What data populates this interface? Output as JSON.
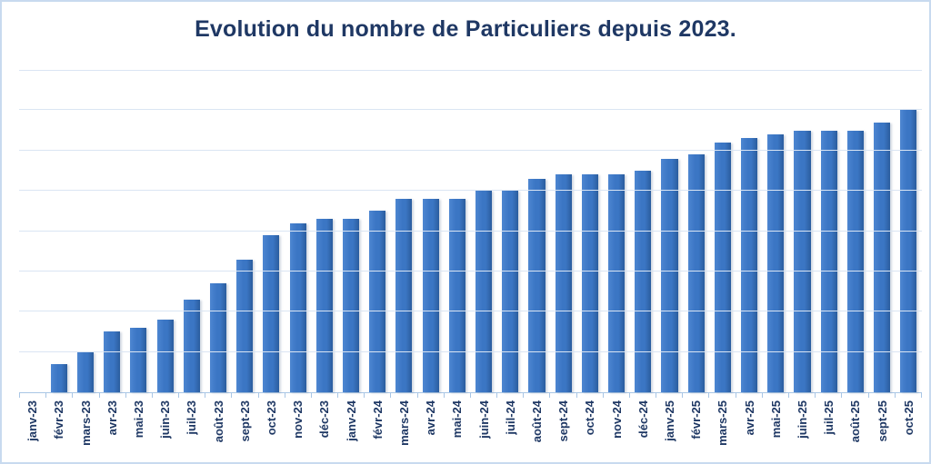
{
  "chart_data": {
    "type": "bar",
    "title": "Evolution du nombre de Particuliers depuis 2023.",
    "xlabel": "",
    "ylabel": "",
    "categories": [
      "janv-23",
      "févr-23",
      "mars-23",
      "avr-23",
      "mai-23",
      "juin-23",
      "juil-23",
      "août-23",
      "sept-23",
      "oct-23",
      "nov-23",
      "déc-23",
      "janv-24",
      "févr-24",
      "mars-24",
      "avr-24",
      "mai-24",
      "juin-24",
      "juil-24",
      "août-24",
      "sept-24",
      "oct-24",
      "nov-24",
      "déc-24",
      "janv-25",
      "févr-25",
      "mars-25",
      "avr-25",
      "mai-25",
      "juin-25",
      "juil-25",
      "août-25",
      "sept-25",
      "oct-25"
    ],
    "values": [
      0,
      7,
      10,
      15,
      16,
      18,
      23,
      27,
      33,
      39,
      42,
      43,
      43,
      45,
      48,
      48,
      48,
      50,
      50,
      53,
      54,
      54,
      54,
      55,
      58,
      59,
      62,
      63,
      64,
      65,
      65,
      65,
      67,
      70
    ],
    "ylim": [
      0,
      80
    ],
    "gridline_step": 10,
    "grid": true,
    "legend_position": "none",
    "y_tick_labels_visible": false,
    "x_tick_label_rotation_deg": 90
  },
  "colors": {
    "bar_light": "#4d86d1",
    "bar_main": "#3b76c4",
    "bar_dark": "#2b5d9e",
    "title_text": "#1f3864",
    "axis_label_text": "#1f3864",
    "gridline": "#dae5f3",
    "axis_line": "#a9c6e5",
    "canvas_border": "#c8daef",
    "background": "#ffffff"
  }
}
